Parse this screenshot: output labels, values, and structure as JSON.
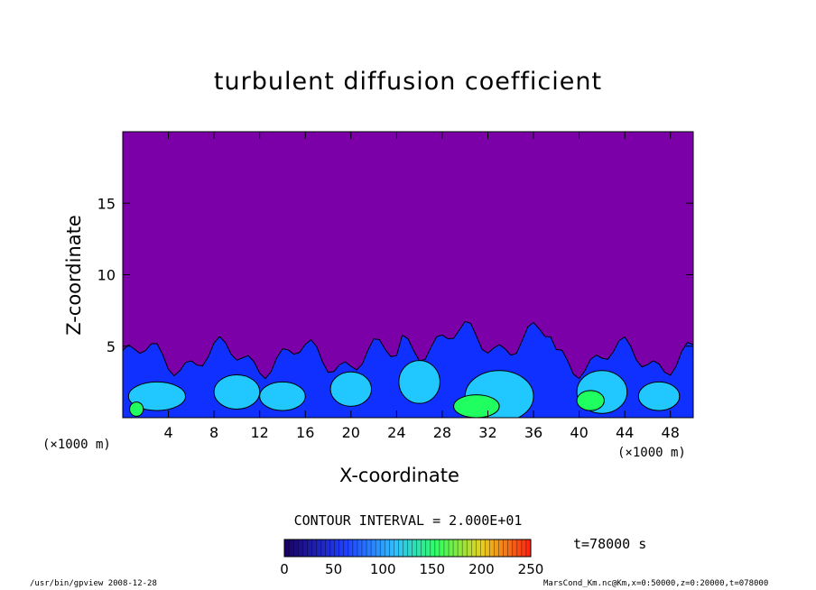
{
  "chart_data": {
    "type": "heatmap",
    "title": "turbulent diffusion coefficient",
    "xlabel": "X-coordinate",
    "ylabel": "Z-coordinate",
    "x_unit_label": "(×1000 m)",
    "y_unit_label": "(×1000 m)",
    "xlim": [
      0,
      50
    ],
    "ylim": [
      0,
      20
    ],
    "x_ticks": [
      "4",
      "8",
      "12",
      "16",
      "20",
      "24",
      "28",
      "32",
      "36",
      "40",
      "44",
      "48"
    ],
    "y_ticks": [
      "5",
      "10",
      "15"
    ],
    "contour_interval_text": "CONTOUR INTERVAL = 2.000E+01",
    "colorbar": {
      "min": 0,
      "max": 250,
      "ticks": [
        "0",
        "50",
        "100",
        "150",
        "200",
        "250"
      ]
    },
    "background_value": 0,
    "turbulent_layer_top_approx": 5,
    "colors": {
      "low": "#7b00a8",
      "blue": "#1030ff",
      "cyan": "#20c8ff",
      "green": "#20ff60"
    }
  },
  "time_label": "t=78000 s",
  "footer": {
    "left": "/usr/bin/gpview  2008-12-28",
    "right": "MarsCond_Km.nc@Km,x=0:50000,z=0:20000,t=078000"
  }
}
